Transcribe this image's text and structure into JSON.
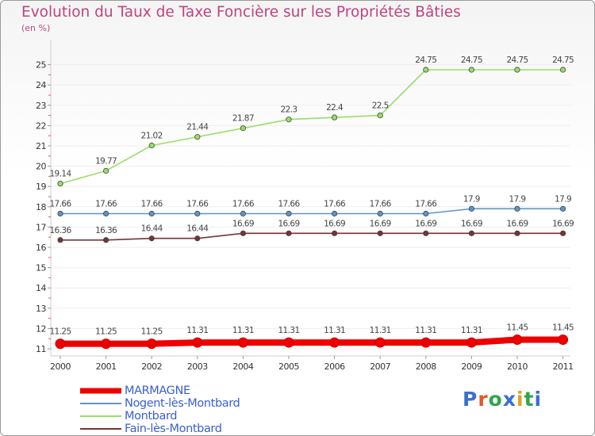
{
  "title": "Evolution du Taux de Taxe Foncière sur les Propriétés Bâties",
  "unit_label": "(en %)",
  "logo": {
    "text": "Proxiti",
    "colors": [
      "#3a6fcf",
      "#e0592a",
      "#2fa64a",
      "#3a6fcf",
      "#e0a21c",
      "#2fa64a",
      "#3a6fcf"
    ]
  },
  "chart_data": {
    "type": "line",
    "title": "Evolution du Taux de Taxe Foncière sur les Propriétés Bâties",
    "ylabel": "(en %)",
    "xlabel": "",
    "ylim": [
      10.5,
      25.2
    ],
    "yticks": [
      11,
      12,
      13,
      14,
      15,
      16,
      17,
      18,
      19,
      20,
      21,
      22,
      23,
      24,
      25
    ],
    "x": [
      "2000",
      "2001",
      "2002",
      "2003",
      "2004",
      "2005",
      "2006",
      "2007",
      "2008",
      "2009",
      "2010",
      "2011"
    ],
    "legend_position": "bottom-left",
    "series": [
      {
        "name": "MARMAGNE",
        "color": "#ee0000",
        "values": [
          11.25,
          11.25,
          11.25,
          11.31,
          11.31,
          11.31,
          11.31,
          11.31,
          11.31,
          11.31,
          11.45,
          11.45
        ],
        "labels": [
          "11.25",
          "11.25",
          "11.25",
          "11.31",
          "11.31",
          "11.31",
          "11.31",
          "11.31",
          "11.31",
          "11.31",
          "11.45",
          "11.45"
        ]
      },
      {
        "name": "Nogent-lès-Montbard",
        "color": "#5b95c8",
        "values": [
          17.66,
          17.66,
          17.66,
          17.66,
          17.66,
          17.66,
          17.66,
          17.66,
          17.66,
          17.9,
          17.9,
          17.9
        ],
        "labels": [
          "17.66",
          "17.66",
          "17.66",
          "17.66",
          "17.66",
          "17.66",
          "17.66",
          "17.66",
          "17.66",
          "17.9",
          "17.9",
          "17.9"
        ]
      },
      {
        "name": "Montbard",
        "color": "#99dd66",
        "values": [
          19.14,
          19.77,
          21.02,
          21.44,
          21.87,
          22.3,
          22.4,
          22.5,
          24.75,
          24.75,
          24.75,
          24.75
        ],
        "labels": [
          "19.14",
          "19.77",
          "21.02",
          "21.44",
          "21.87",
          "22.3",
          "22.4",
          "22.5",
          "24.75",
          "24.75",
          "24.75",
          "24.75"
        ]
      },
      {
        "name": "Fain-lès-Montbard",
        "color": "#773333",
        "values": [
          16.36,
          16.36,
          16.44,
          16.44,
          16.69,
          16.69,
          16.69,
          16.69,
          16.69,
          16.69,
          16.69,
          16.69
        ],
        "labels": [
          "16.36",
          "16.36",
          "16.44",
          "16.44",
          "16.69",
          "16.69",
          "16.69",
          "16.69",
          "16.69",
          "16.69",
          "16.69",
          "16.69"
        ]
      }
    ]
  }
}
